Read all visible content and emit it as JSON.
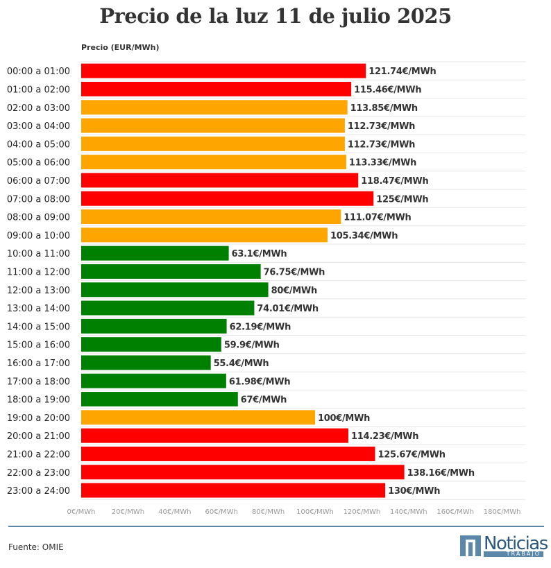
{
  "chart_data": {
    "type": "bar",
    "orientation": "horizontal",
    "title": "Precio de la luz 11 de julio 2025",
    "ylabel": "Precio (EUR/MWh)",
    "categories": [
      "00:00 a 01:00",
      "01:00 a 02:00",
      "02:00 a 03:00",
      "03:00 a 04:00",
      "04:00 a 05:00",
      "05:00 a 06:00",
      "06:00 a 07:00",
      "07:00 a 08:00",
      "08:00 a 09:00",
      "09:00 a 10:00",
      "10:00 a 11:00",
      "11:00 a 12:00",
      "12:00 a 13:00",
      "13:00 a 14:00",
      "14:00 a 15:00",
      "15:00 a 16:00",
      "16:00 a 17:00",
      "17:00 a 18:00",
      "18:00 a 19:00",
      "19:00 a 20:00",
      "20:00 a 21:00",
      "21:00 a 22:00",
      "22:00 a 23:00",
      "23:00 a 24:00"
    ],
    "values": [
      121.74,
      115.46,
      113.85,
      112.73,
      112.73,
      113.33,
      118.47,
      125,
      111.07,
      105.34,
      63.1,
      76.75,
      80,
      74.01,
      62.19,
      59.9,
      55.4,
      61.98,
      67,
      100,
      114.23,
      125.67,
      138.16,
      130
    ],
    "value_labels": [
      "121.74€/MWh",
      "115.46€/MWh",
      "113.85€/MWh",
      "112.73€/MWh",
      "112.73€/MWh",
      "113.33€/MWh",
      "118.47€/MWh",
      "125€/MWh",
      "111.07€/MWh",
      "105.34€/MWh",
      "63.1€/MWh",
      "76.75€/MWh",
      "80€/MWh",
      "74.01€/MWh",
      "62.19€/MWh",
      "59.9€/MWh",
      "55.4€/MWh",
      "61.98€/MWh",
      "67€/MWh",
      "100€/MWh",
      "114.23€/MWh",
      "125.67€/MWh",
      "138.16€/MWh",
      "130€/MWh"
    ],
    "levels": [
      "high",
      "high",
      "mid",
      "mid",
      "mid",
      "mid",
      "high",
      "high",
      "mid",
      "mid",
      "low",
      "low",
      "low",
      "low",
      "low",
      "low",
      "low",
      "low",
      "low",
      "mid",
      "high",
      "high",
      "high",
      "high"
    ],
    "level_colors": {
      "high": "#ff0000",
      "mid": "#ffa500",
      "low": "#008000"
    },
    "xlim": [
      0,
      190
    ],
    "x_ticks": [
      0,
      20,
      40,
      60,
      80,
      100,
      120,
      140,
      160,
      180
    ],
    "x_tick_labels": [
      "0€/MWh",
      "20€/MWh",
      "40€/MWh",
      "60€/MWh",
      "80€/MWh",
      "100€/MWh",
      "120€/MWh",
      "140€/MWh",
      "160€/MWh",
      "180€/MWh"
    ],
    "grid": true
  },
  "footer": {
    "source": "Fuente: OMIE",
    "logo_word": "Noticias",
    "logo_tag": "TRABAJO"
  },
  "colors": {
    "accent": "#5b87a8",
    "brand": "#2c5a7f"
  }
}
